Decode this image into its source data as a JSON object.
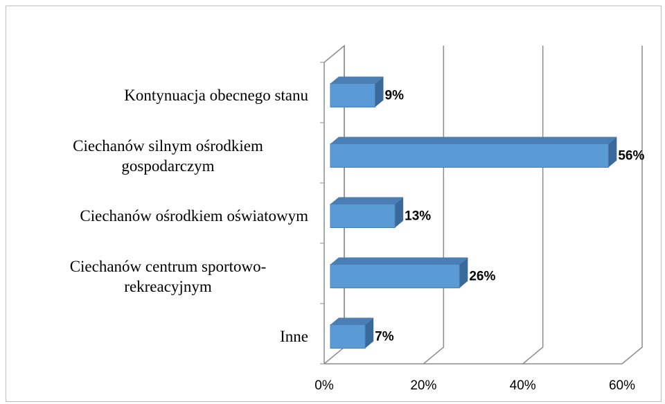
{
  "chart_data": {
    "type": "bar3d_horizontal",
    "categories": [
      "Kontynuacja obecnego stanu",
      "Ciechanów silnym ośrodkiem gospodarczym",
      "Ciechanów ośrodkiem oświatowym",
      "Ciechanów centrum sportowo-rekreacyjnym",
      "Inne"
    ],
    "values": [
      9,
      56,
      13,
      26,
      7
    ],
    "value_labels": [
      "9%",
      "56%",
      "13%",
      "26%",
      "7%"
    ],
    "color": "#5b9bd5",
    "xlim": [
      0,
      60
    ],
    "xticks": [
      {
        "value": 0,
        "label": "0%"
      },
      {
        "value": 20,
        "label": "20%"
      },
      {
        "value": 40,
        "label": "40%"
      },
      {
        "value": 60,
        "label": "60%"
      }
    ],
    "grid": true
  }
}
